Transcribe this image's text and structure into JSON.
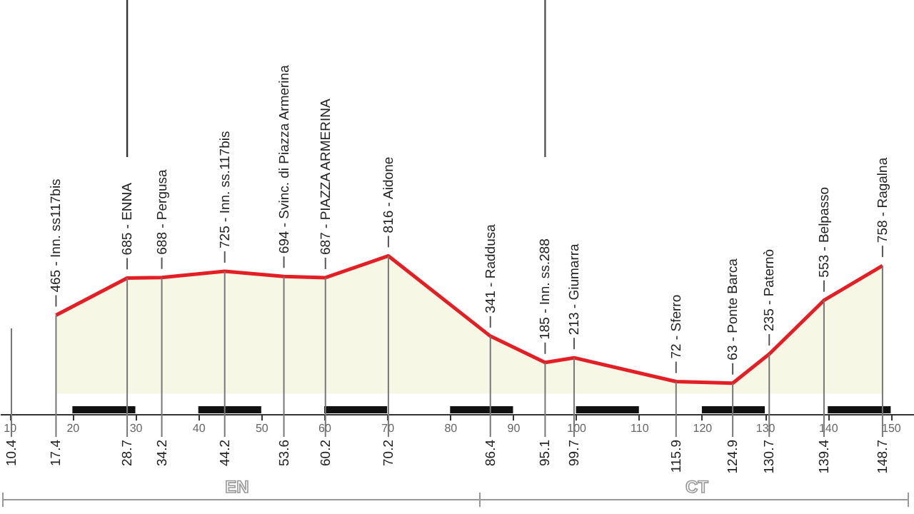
{
  "chart_data": {
    "type": "area",
    "x": [
      17.4,
      28.7,
      34.2,
      44.2,
      53.6,
      60.2,
      70.2,
      86.4,
      95.1,
      99.7,
      115.9,
      124.9,
      130.7,
      139.4,
      148.7
    ],
    "series": [
      {
        "color": "#e31e24",
        "values": [
          465,
          685,
          688,
          725,
          694,
          687,
          816,
          341,
          185,
          213,
          72,
          63,
          235,
          553,
          758
        ],
        "value_labels": [
          "465 - Inn. ss117bis",
          "685 - ENNA",
          "688 - Pergusa",
          "725 - Inn. ss.117bis",
          "694 - Svinc. di Piazza Armerina",
          "687 - PIAZZA ARMERINA",
          "816 - Aidone",
          "341 - Raddusa",
          "185 - Inn. ss.288",
          "213 - Giumarra",
          "72 - Sferro",
          "63 - Ponte Barca",
          "235 - Paternò",
          "553 - Belpasso",
          "758 - Ragalna"
        ]
      }
    ],
    "xlim": [
      8.5,
      153.7
    ],
    "xticks": [
      10,
      20,
      30,
      40,
      50,
      60,
      70,
      80,
      90,
      100,
      110,
      120,
      130,
      140,
      150
    ],
    "ylim": [
      -120,
      2330
    ],
    "tick_labels": "x",
    "ref_lines": [
      {
        "axis": "x",
        "value": 28.7,
        "color": "#333333"
      },
      {
        "axis": "x",
        "value": 95.1,
        "color": "#555555"
      }
    ],
    "annotations": [
      "EN",
      "CT",
      "10.4",
      {
        "text": "17.4",
        "x": 17.4
      },
      {
        "text": "28.7",
        "x": 28.7
      },
      {
        "text": "34.2",
        "x": 34.2
      },
      {
        "text": "44.2",
        "x": 44.2
      },
      {
        "text": "53.6",
        "x": 53.6
      },
      {
        "text": "60.2",
        "x": 60.2
      },
      {
        "text": "70.2",
        "x": 70.2
      },
      {
        "text": "86.4",
        "x": 86.4
      },
      {
        "text": "95.1",
        "x": 95.1
      },
      {
        "text": "99.7",
        "x": 99.7
      },
      {
        "text": "115.9",
        "x": 115.9
      },
      {
        "text": "124.9",
        "x": 124.9
      },
      {
        "text": "130.7",
        "x": 130.7
      },
      {
        "text": "139.4",
        "x": 139.4
      },
      {
        "text": "148.7",
        "x": 148.7
      }
    ]
  }
}
